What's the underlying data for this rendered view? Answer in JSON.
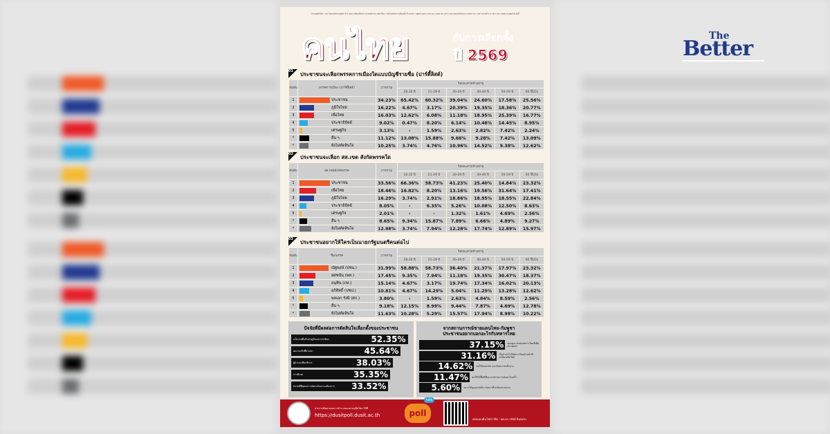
{
  "brand": {
    "logo_top": "The",
    "logo_main": "Better"
  },
  "poster": {
    "note": "\"สวนดุสิตโพล\" มหาวิทยาลัยสวนดุสิต สำรวจความคิดเห็นประชาชนทั่วประเทศ เรื่อง \"คนไทยกับการเลือกตั้ง ปี 2569\" กลุ่มตัวอย่าง จำนวน 2,682 คน (สำรวจทางออนไลน์และภาคสนาม) ระหว่างวันที่ 5-8 มกราคม 2569 สรุปผลได้ ดังนี้",
    "title": "คนไทย",
    "subtitle_line1": "กับการเลือกตั้ง",
    "subtitle_line2": "ปี 2569"
  },
  "age_header": "ร้อยละตามช่วงอายุ",
  "rank_header": "อันดับ",
  "total_header": "ภาพรวม",
  "age_groups": [
    "18-20 ปี",
    "21-29 ปี",
    "30-39 ปี",
    "40-49 ปี",
    "50-59 ปี",
    "60 ขึ้นไป"
  ],
  "sections": [
    {
      "num": "01",
      "title": "ประชาชนจะเลือกพรรคการเมืองใดแบบบัญชีรายชื่อ (ปาร์ตี้ลิสต์)",
      "col_header": "พรรคการเมือง (ปาร์ตี้ลิสต์)",
      "rows": [
        {
          "rank": "1",
          "name": "ประชาชน",
          "color": "#f05a28",
          "share": 34.23,
          "total": "34.23%",
          "ages": [
            "65.42%",
            "60.32%",
            "39.04%",
            "24.60%",
            "17.58%",
            "25.56%"
          ]
        },
        {
          "rank": "2",
          "name": "ภูมิใจไทย",
          "color": "#233a8f",
          "share": 16.22,
          "total": "16.22%",
          "ages": [
            "4.67%",
            "3.17%",
            "20.39%",
            "19.35%",
            "18.36%",
            "20.77%"
          ]
        },
        {
          "rank": "3",
          "name": "เพื่อไทย",
          "color": "#e41e26",
          "share": 16.03,
          "total": "16.03%",
          "ages": [
            "12.62%",
            "6.08%",
            "11.18%",
            "18.95%",
            "25.39%",
            "16.77%"
          ]
        },
        {
          "rank": "4",
          "name": "ประชาธิปัตย์",
          "color": "#29abe2",
          "share": 9.02,
          "total": "9.02%",
          "ages": [
            "0.47%",
            "8.20%",
            "6.14%",
            "10.48%",
            "14.45%",
            "8.95%"
          ]
        },
        {
          "rank": "5",
          "name": "เศรษฐกิจ",
          "color": "#f7b82d",
          "share": 3.13,
          "total": "3.13%",
          "ages": [
            "-",
            "1.59%",
            "2.63%",
            "2.82%",
            "7.42%",
            "2.24%"
          ]
        },
        {
          "rank": "*",
          "name": "อื่น ๆ",
          "color": "#000000",
          "share": 11.12,
          "total": "11.12%",
          "ages": [
            "13.08%",
            "15.88%",
            "9.66%",
            "9.28%",
            "7.42%",
            "13.09%"
          ]
        },
        {
          "rank": "*",
          "name": "ยังไม่ตัดสินใจ",
          "color": "#6d6e71",
          "share": 10.25,
          "total": "10.25%",
          "ages": [
            "3.74%",
            "4.76%",
            "10.96%",
            "14.52%",
            "9.38%",
            "12.62%"
          ]
        }
      ]
    },
    {
      "num": "02",
      "title": "ประชาชนจะเลือก สส.เขต สังกัดพรรคใด",
      "col_header": "สส.เขตสังกัดพรรค",
      "rows": [
        {
          "rank": "1",
          "name": "ประชาชน",
          "color": "#f05a28",
          "share": 33.56,
          "total": "33.56%",
          "ages": [
            "66.36%",
            "58.73%",
            "41.23%",
            "25.40%",
            "14.84%",
            "23.32%"
          ]
        },
        {
          "rank": "2",
          "name": "เพื่อไทย",
          "color": "#e41e26",
          "share": 18.46,
          "total": "18.46%",
          "ages": [
            "16.82%",
            "8.20%",
            "13.16%",
            "19.56%",
            "31.64%",
            "17.41%"
          ]
        },
        {
          "rank": "3",
          "name": "ภูมิใจไทย",
          "color": "#233a8f",
          "share": 16.29,
          "total": "16.29%",
          "ages": [
            "3.74%",
            "2.91%",
            "18.86%",
            "18.95%",
            "18.55%",
            "22.84%"
          ]
        },
        {
          "rank": "4",
          "name": "ประชาธิปัตย์",
          "color": "#29abe2",
          "share": 8.05,
          "total": "8.05%",
          "ages": [
            "-",
            "6.35%",
            "5.26%",
            "10.08%",
            "12.50%",
            "8.63%"
          ]
        },
        {
          "rank": "5",
          "name": "เศรษฐกิจ",
          "color": "#f7b82d",
          "share": 2.01,
          "total": "2.01%",
          "ages": [
            "-",
            "-",
            "1.32%",
            "1.61%",
            "4.69%",
            "2.56%"
          ]
        },
        {
          "rank": "*",
          "name": "อื่น ๆ",
          "color": "#000000",
          "share": 8.65,
          "total": "8.65%",
          "ages": [
            "9.34%",
            "15.87%",
            "7.89%",
            "6.66%",
            "4.89%",
            "9.27%"
          ]
        },
        {
          "rank": "*",
          "name": "ยังไม่ตัดสินใจ",
          "color": "#6d6e71",
          "share": 12.98,
          "total": "12.98%",
          "ages": [
            "3.74%",
            "7.94%",
            "12.28%",
            "17.74%",
            "12.89%",
            "15.97%"
          ]
        }
      ]
    },
    {
      "num": "03",
      "title": "ประชาชนอยากให้ใครเป็นนายกรัฐมนตรีคนต่อไป",
      "col_header": "ชื่อ/พรรค",
      "rows": [
        {
          "rank": "1",
          "name": "ณัฐพงษ์ (ปชน.)",
          "color": "#f05a28",
          "share": 31.99,
          "total": "31.99%",
          "ages": [
            "58.88%",
            "58.73%",
            "36.40%",
            "21.37%",
            "17.97%",
            "23.32%"
          ]
        },
        {
          "rank": "2",
          "name": "ยศชนัน (พท.)",
          "color": "#e41e26",
          "share": 17.45,
          "total": "17.45%",
          "ages": [
            "9.35%",
            "7.94%",
            "11.18%",
            "19.35%",
            "30.47%",
            "18.37%"
          ]
        },
        {
          "rank": "3",
          "name": "อนุทิน (ภท.)",
          "color": "#233a8f",
          "share": 15.14,
          "total": "15.14%",
          "ages": [
            "4.67%",
            "3.17%",
            "19.74%",
            "17.34%",
            "16.02%",
            "20.13%"
          ]
        },
        {
          "rank": "4",
          "name": "อภิสิทธิ์ (ปชป.)",
          "color": "#29abe2",
          "share": 10.81,
          "total": "10.81%",
          "ages": [
            "4.67%",
            "14.29%",
            "5.04%",
            "11.29%",
            "13.28%",
            "12.62%"
          ]
        },
        {
          "rank": "5",
          "name": "พลเอก รังษี (ศก.)",
          "color": "#f7b82d",
          "share": 3.8,
          "total": "3.80%",
          "ages": [
            "-",
            "1.59%",
            "2.63%",
            "4.84%",
            "8.59%",
            "2.56%"
          ]
        },
        {
          "rank": "*",
          "name": "อื่น ๆ",
          "color": "#000000",
          "share": 9.18,
          "total": "9.18%",
          "ages": [
            "12.15%",
            "8.99%",
            "9.44%",
            "7.87%",
            "4.69%",
            "12.78%"
          ]
        },
        {
          "rank": "*",
          "name": "ยังไม่ตัดสินใจ",
          "color": "#6d6e71",
          "share": 11.63,
          "total": "11.63%",
          "ages": [
            "10.28%",
            "5.29%",
            "15.57%",
            "17.94%",
            "8.98%",
            "10.22%"
          ]
        }
      ]
    }
  ],
  "factors": {
    "num": "04",
    "title": "ปัจจัยที่มีผลต่อการตัดสินใจเลือกตั้งของประชาชน",
    "items": [
      {
        "label": "นโยบายที่แก้เศรษฐกิจและปากท้อง",
        "value": "52.35%",
        "pct": 52.35
      },
      {
        "label": "ผลงานจริงที่ผ่านมา",
        "value": "45.64%",
        "pct": 45.64
      },
      {
        "label": "ผู้นำและทีมบริหาร",
        "value": "38.03%",
        "pct": 38.03
      },
      {
        "label": "การดีเบต",
        "value": "35.35%",
        "pct": 35.35
      },
      {
        "label": "พรรคที่มีอุดมการณ์ตรงกับความต้องการ",
        "value": "33.52%",
        "pct": 33.52
      }
    ]
  },
  "border": {
    "num": "05",
    "title_line1": "จากสถานการณ์ชายแดนไทย-กัมพูชา",
    "title_line2": "ประชาชนอยากบอกอะไรกับทหารไทย",
    "items": [
      {
        "label": "ขอบคุณ ยกย่องทหารไทยที่เสียสละทุ่มเท",
        "value": "37.15%",
        "pct": 37.15
      },
      {
        "label": "เป็นกำลังใจให้ทหารไทยทำหน้าที่ปกป้องอธิปไตย",
        "value": "31.16%",
        "pct": 31.16
      },
      {
        "label": "ขอให้ปลอดภัย และมีสุขภาพแข็งแรง",
        "value": "14.62%",
        "pct": 14.62
      },
      {
        "label": "ขอให้ได้พื้นที่คืนและสถานการณ์สงบโดยเร็ว",
        "value": "11.47%",
        "pct": 11.47
      },
      {
        "label": "อยากให้ดูแลสวัสดิการทหารที่ปกป้องชายแดน",
        "value": "5.60%",
        "pct": 5.6
      }
    ]
  },
  "footer": {
    "note": "สามารถติดตามผลการสำรวจของสวนดุสิตโพล ได้ที่",
    "url": "https://dusitpoll.dusit.ac.th",
    "poll_logo": "poll",
    "talk_badge": "talk",
    "credit": "ออกแบบอินโฟกราฟิก : ผศ.ดร.วรัตต์ อินทสระ"
  }
}
